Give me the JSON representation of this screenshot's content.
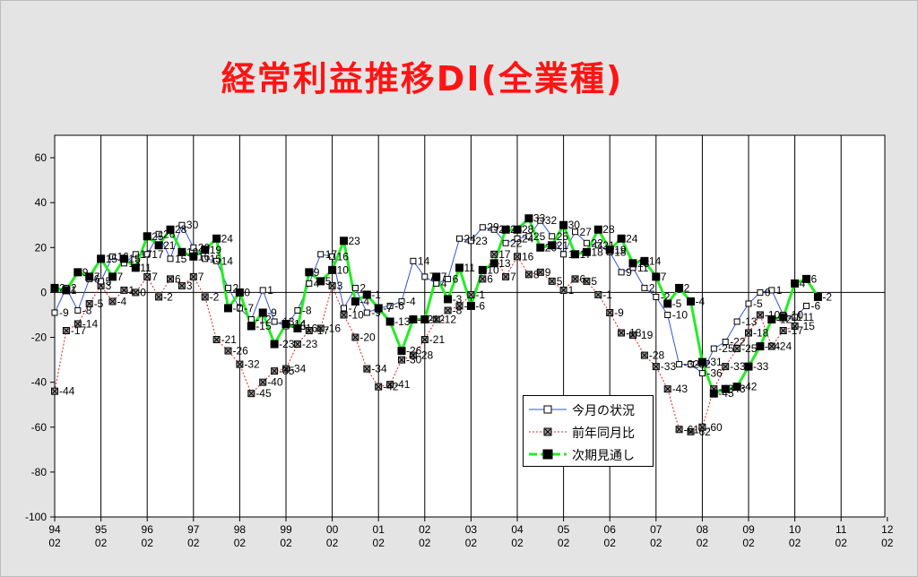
{
  "chart_data": {
    "type": "line",
    "title": "経常利益推移DI(全業種)",
    "xlabel": "",
    "ylabel": "",
    "ylim": [
      -100,
      70
    ],
    "yticks": [
      60,
      40,
      20,
      0,
      -20,
      -40,
      -60,
      -80,
      -100
    ],
    "grid": "vertical at each year, horizontal zero line",
    "legend_position": "bottom-center",
    "x_year_labels": [
      "94",
      "95",
      "96",
      "97",
      "98",
      "99",
      "00",
      "01",
      "02",
      "03",
      "04",
      "05",
      "06",
      "07",
      "08",
      "09",
      "10",
      "11",
      "12"
    ],
    "x_sub_label": "02",
    "x_period_start": "1994-02",
    "x_step_months": 3,
    "colors": {
      "current": "#3355dd",
      "yoy": "#e02020",
      "outlook": "#22ee22"
    },
    "series": [
      {
        "name": "今月の状況",
        "values": [
          -9,
          2,
          -8,
          6,
          5,
          16,
          13,
          17,
          17,
          26,
          15,
          30,
          20,
          15,
          14,
          2,
          -7,
          -12,
          1,
          -13,
          -15,
          -8,
          4,
          17,
          16,
          -7,
          2,
          -9,
          -7,
          -6,
          -4,
          14,
          7,
          4,
          6,
          24,
          23,
          29,
          28,
          22,
          24,
          25,
          32,
          25,
          17,
          27,
          22,
          21,
          18,
          9,
          11,
          2,
          -2,
          -10,
          -32,
          -32,
          -36,
          -25,
          -22,
          -13,
          -5,
          0,
          1,
          -10,
          -11,
          -6
        ]
      },
      {
        "name": "前年同月比",
        "values": [
          -44,
          -17,
          -14,
          -5,
          3,
          -4,
          1,
          0,
          7,
          -2,
          6,
          3,
          7,
          -2,
          -21,
          -26,
          -32,
          -45,
          -40,
          -35,
          -34,
          -23,
          -17,
          -16,
          3,
          -10,
          -20,
          -34,
          -42,
          -41,
          -30,
          -28,
          -21,
          -12,
          -8,
          -6,
          -1,
          6,
          17,
          7,
          16,
          8,
          9,
          5,
          1,
          6,
          5,
          -1,
          -9,
          -18,
          -19,
          -28,
          -33,
          -43,
          -61,
          -62,
          -60,
          -43,
          -33,
          -25,
          -18,
          -10,
          -24,
          -17,
          -15
        ]
      },
      {
        "name": "次期見通し",
        "values": [
          2,
          1,
          9,
          7,
          15,
          7,
          15,
          11,
          25,
          21,
          28,
          18,
          16,
          19,
          24,
          -7,
          0,
          -15,
          -9,
          -23,
          -14,
          -16,
          9,
          5,
          10,
          23,
          -4,
          -1,
          -7,
          -13,
          -26,
          -12,
          -12,
          7,
          -3,
          11,
          -6,
          10,
          13,
          28,
          28,
          33,
          20,
          21,
          30,
          17,
          18,
          28,
          19,
          24,
          13,
          14,
          7,
          -5,
          2,
          -4,
          -31,
          -45,
          -43,
          -42,
          -33,
          -24,
          -12,
          -11,
          4,
          6,
          -2
        ]
      }
    ]
  }
}
